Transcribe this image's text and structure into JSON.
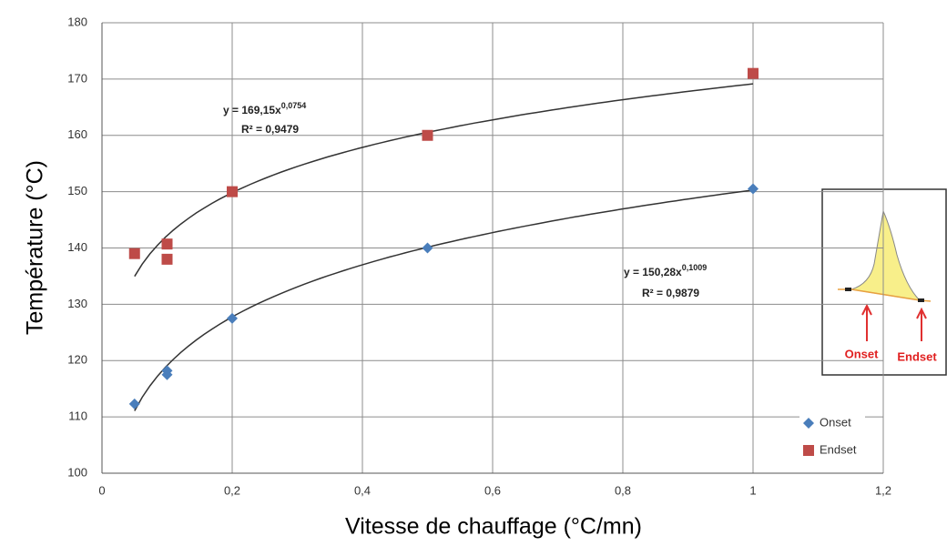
{
  "chart_data": {
    "type": "scatter",
    "xlabel": "Vitesse de chauffage (°C/mn)",
    "ylabel": "Température (°C)",
    "xlim": [
      0,
      1.2
    ],
    "xticks": [
      0,
      {
        "value": 0.2,
        "label": "0,2"
      },
      {
        "value": 0.4,
        "label": "0,4"
      },
      {
        "value": 0.6,
        "label": "0,6"
      },
      {
        "value": 0.8,
        "label": "0,8"
      },
      1,
      {
        "value": 1.2,
        "label": "1,2"
      }
    ],
    "ylim": [
      100,
      180
    ],
    "yticks": [
      100,
      110,
      120,
      130,
      140,
      150,
      160,
      170,
      180
    ],
    "grid": true,
    "legend": "lower right",
    "series": [
      {
        "name": "Onset",
        "color": "#4a7ebb",
        "marker": "diamond",
        "x": [
          0.05,
          0.1,
          0.1,
          0.2,
          0.5,
          1
        ],
        "values": [
          112.3,
          118.2,
          117.5,
          127.5,
          140,
          150.5
        ],
        "trendline": {
          "a": 150.28,
          "b": 0.1009,
          "equation": "y = 150,28x",
          "exponent": "0,1009",
          "r2": "R² = 0,9879"
        }
      },
      {
        "name": "Endset",
        "color": "#be4b48",
        "marker": "square",
        "x": [
          0.05,
          0.1,
          0.1,
          0.2,
          0.5,
          1
        ],
        "values": [
          139,
          140.7,
          138,
          150,
          160,
          171
        ],
        "trendline": {
          "a": 169.15,
          "b": 0.0754,
          "equation": "y = 169,15x",
          "exponent": "0,0754",
          "r2": "R² = 0,9479"
        }
      }
    ],
    "inset_labels": [
      "Onset",
      "Endset"
    ]
  }
}
